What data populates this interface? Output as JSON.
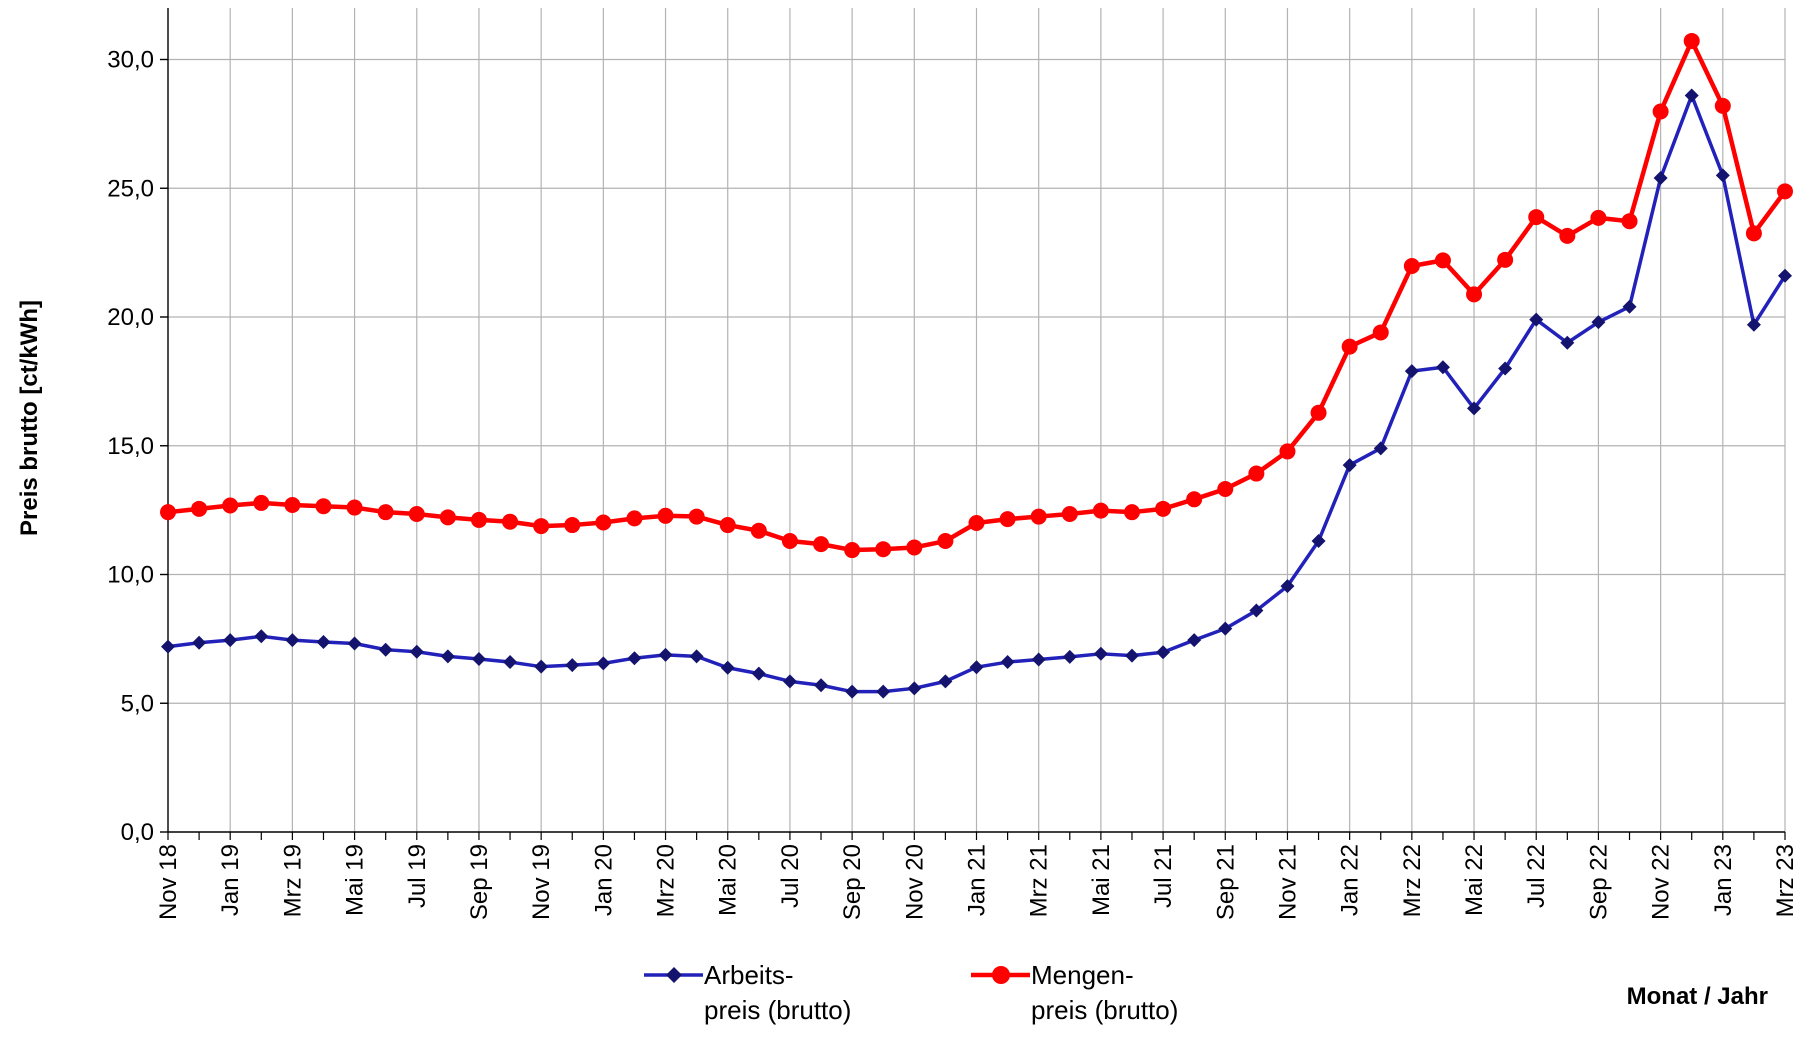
{
  "chart_data": {
    "type": "line",
    "ylabel": "Preis brutto [ct/kWh]",
    "xlabel": "Monat / Jahr",
    "ylim": [
      0,
      32
    ],
    "yticks": [
      0,
      5,
      10,
      15,
      20,
      25,
      30
    ],
    "ytick_labels": [
      "0,0",
      "5,0",
      "10,0",
      "15,0",
      "20,0",
      "25,0",
      "30,0"
    ],
    "grid": true,
    "legend_position": "bottom",
    "x": [
      "Nov 18",
      "Dez 18",
      "Jan 19",
      "Feb 19",
      "Mrz 19",
      "Apr 19",
      "Mai 19",
      "Jun 19",
      "Jul 19",
      "Aug 19",
      "Sep 19",
      "Okt 19",
      "Nov 19",
      "Dez 19",
      "Jan 20",
      "Feb 20",
      "Mrz 20",
      "Apr 20",
      "Mai 20",
      "Jun 20",
      "Jul 20",
      "Aug 20",
      "Sep 20",
      "Okt 20",
      "Nov 20",
      "Dez 20",
      "Jan 21",
      "Feb 21",
      "Mrz 21",
      "Apr 21",
      "Mai 21",
      "Jun 21",
      "Jul 21",
      "Aug 21",
      "Sep 21",
      "Okt 21",
      "Nov 21",
      "Dez 21",
      "Jan 22",
      "Feb 22",
      "Mrz 22",
      "Apr 22",
      "Mai 22",
      "Jun 22",
      "Jul 22",
      "Aug 22",
      "Sep 22",
      "Okt 22",
      "Nov 22",
      "Dez 22",
      "Jan 23",
      "Feb 23",
      "Mrz 23"
    ],
    "xtick_labels": [
      "Nov 18",
      "Jan 19",
      "Mrz 19",
      "Mai 19",
      "Jul 19",
      "Sep 19",
      "Nov 19",
      "Jan 20",
      "Mrz 20",
      "Mai 20",
      "Jul 20",
      "Sep 20",
      "Nov 20",
      "Jan 21",
      "Mrz 21",
      "Mai 21",
      "Jul 21",
      "Sep 21",
      "Nov 21",
      "Jan 22",
      "Mrz 22",
      "Mai 22",
      "Jul 22",
      "Sep 22",
      "Nov 22",
      "Jan 23",
      "Mrz 23"
    ],
    "series": [
      {
        "name": "Arbeits-\npreis (brutto)",
        "color": "#2222bb",
        "marker": "diamond",
        "values": [
          7.2,
          7.35,
          7.45,
          7.6,
          7.45,
          7.38,
          7.32,
          7.08,
          7.0,
          6.82,
          6.72,
          6.6,
          6.42,
          6.48,
          6.55,
          6.75,
          6.88,
          6.82,
          6.38,
          6.15,
          5.85,
          5.7,
          5.45,
          5.45,
          5.58,
          5.85,
          6.4,
          6.6,
          6.7,
          6.8,
          6.92,
          6.85,
          6.98,
          7.45,
          7.9,
          8.6,
          9.55,
          11.3,
          14.25,
          14.9,
          17.9,
          18.05,
          16.45,
          18.0,
          19.9,
          19.0,
          19.8,
          20.4,
          25.4,
          28.6,
          25.5,
          19.7,
          21.6
        ]
      },
      {
        "name": "Mengen-\npreis (brutto)",
        "color": "#ff0000",
        "marker": "circle",
        "values": [
          12.42,
          12.55,
          12.68,
          12.78,
          12.7,
          12.65,
          12.6,
          12.42,
          12.35,
          12.22,
          12.12,
          12.05,
          11.88,
          11.92,
          12.02,
          12.18,
          12.28,
          12.25,
          11.92,
          11.7,
          11.3,
          11.18,
          10.95,
          10.98,
          11.05,
          11.3,
          12.0,
          12.15,
          12.25,
          12.35,
          12.48,
          12.42,
          12.55,
          12.92,
          13.32,
          13.92,
          14.78,
          16.28,
          18.85,
          19.4,
          21.98,
          22.2,
          20.88,
          22.22,
          23.88,
          23.15,
          23.85,
          23.72,
          27.98,
          30.72,
          28.2,
          23.25,
          24.88
        ]
      }
    ]
  }
}
